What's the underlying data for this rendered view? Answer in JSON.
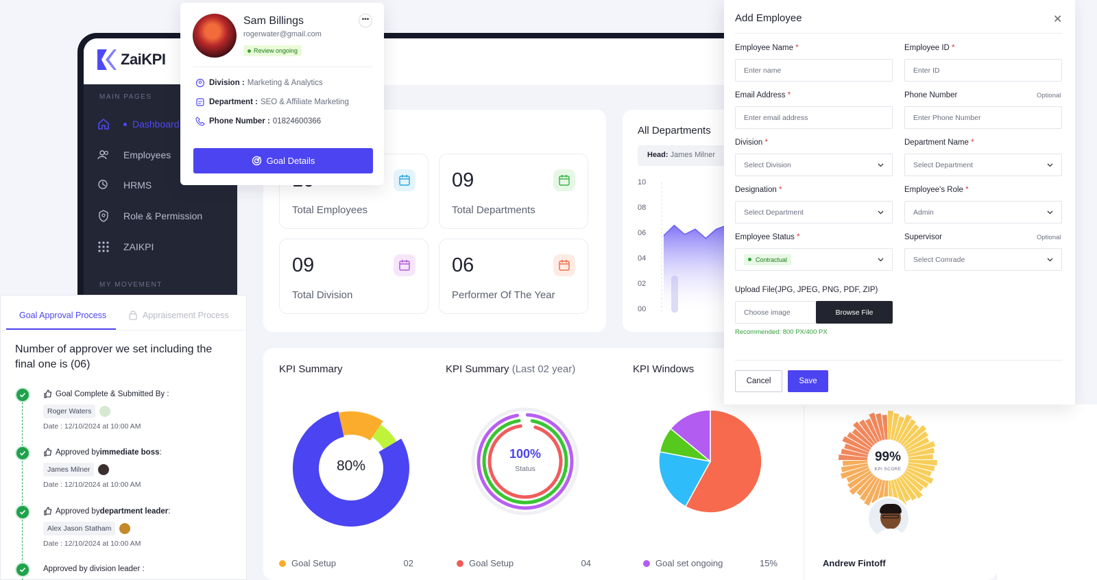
{
  "app": {
    "brand": "ZaiKPI"
  },
  "sidebar": {
    "section_main": "MAIN PAGES",
    "items": [
      {
        "label": "Dashboard",
        "icon": "home-icon",
        "active": true
      },
      {
        "label": "Employees",
        "icon": "users-icon"
      },
      {
        "label": "HRMS",
        "icon": "hrms-icon"
      },
      {
        "label": "Role & Permission",
        "icon": "shield-icon"
      },
      {
        "label": "ZAIKPI",
        "icon": "grid-icon"
      }
    ],
    "section_movement": "MY MOVEMENT"
  },
  "stats": [
    {
      "value": "10",
      "label": "Total Employees",
      "color": "#2ea7e0",
      "bg": "#e3f4fc"
    },
    {
      "value": "09",
      "label": "Total Departments",
      "color": "#3cb54a",
      "bg": "#e6f7e6"
    },
    {
      "value": "09",
      "label": "Total Division",
      "color": "#b45ad8",
      "bg": "#f6e6fc"
    },
    {
      "value": "06",
      "label": "Performer Of The Year",
      "color": "#ee6f4d",
      "bg": "#fdebe4"
    }
  ],
  "departments": {
    "title": "All Departments",
    "head_label": "Head:",
    "head_name": "James Milner",
    "yticks": [
      "10",
      "08",
      "06",
      "04",
      "02",
      "00"
    ]
  },
  "kpi": {
    "summary_title": "KPI Summary",
    "summary2_title": "KPI Summary",
    "summary2_sub": "(Last 02 year)",
    "windows_title": "KPI Windows",
    "donut_value": "80%",
    "ring_value": "100%",
    "ring_sub": "Status",
    "score_value": "99%",
    "score_sub": "KPI SCORE",
    "score_person": "Andrew Fintoff",
    "legend1_label": "Goal Setup",
    "legend1_value": "02",
    "legend2_label": "Goal Setup",
    "legend2_value": "04",
    "legend3_label": "Goal set ongoing",
    "legend3_value": "15%"
  },
  "chart_data": [
    {
      "type": "pie",
      "title": "KPI Summary",
      "values": [
        80,
        13,
        7
      ],
      "colors": [
        "#4b44f2",
        "#fbac2c",
        "#bff23b"
      ],
      "center_label": "80%"
    },
    {
      "type": "pie",
      "title": "KPI Summary (Last 02 year)",
      "values": [
        100,
        100,
        100
      ],
      "colors": [
        "#b85ff2",
        "#38c531",
        "#f05c5c"
      ],
      "center_label": "100%"
    },
    {
      "type": "pie",
      "title": "KPI Windows",
      "values": [
        58,
        20,
        8,
        14
      ],
      "colors": [
        "#f76a4d",
        "#2fbcfa",
        "#56c91f",
        "#b35cf2"
      ]
    },
    {
      "type": "area",
      "title": "All Departments",
      "ylim": [
        0,
        10
      ],
      "values": [
        5.8,
        6.6,
        5.9,
        6.3,
        5.6,
        6.3,
        6.6
      ]
    }
  ],
  "profile": {
    "name": "Sam Billings",
    "email": "rogerwater@gmail.com",
    "status": "Review ongoing",
    "division_label": "Division :",
    "division": "Marketing & Analytics",
    "department_label": "Department :",
    "department": "SEO & Affiliate Marketing",
    "phone_label": "Phone Number :",
    "phone": "01824600366",
    "button": "Goal Details"
  },
  "approval": {
    "tab_active": "Goal Approval Process",
    "tab_other": "Appraisement Process",
    "heading": "Number of approver we set including the final one is (06)",
    "steps": [
      {
        "prefix": "Goal Complete & Submitted By :",
        "strong": "",
        "suffix": "",
        "person": "Roger Waters",
        "date": "Date : 12/10/2024 at 10:00 AM"
      },
      {
        "prefix": "Approved by ",
        "strong": "immediate boss",
        "suffix": " :",
        "person": "James Milner",
        "date": "Date : 12/10/2024 at 10:00 AM"
      },
      {
        "prefix": "Approved by ",
        "strong": "department leader",
        "suffix": " :",
        "person": "Alex Jason Statham",
        "date": "Date : 12/10/2024 at 10:00 AM"
      }
    ],
    "partial": "Approved by division leader :"
  },
  "modal": {
    "title": "Add Employee",
    "fields": {
      "name_label": "Employee Name",
      "name_ph": "Enter name",
      "id_label": "Employee ID",
      "id_ph": "Enter ID",
      "email_label": "Email Address",
      "email_ph": "Enter email address",
      "phone_label": "Phone Number",
      "phone_ph": "Enter Phone Number",
      "division_label": "Division",
      "division_val": "Select Division",
      "dept_label": "Department Name",
      "dept_val": "Select Department",
      "desig_label": "Designation",
      "desig_val": "Select Department",
      "role_label": "Employee's Role",
      "role_val": "Admin",
      "status_label": "Employee Status",
      "status_val": "Contractual",
      "sup_label": "Supervisor",
      "sup_val": "Select Comrade",
      "upload_label": "Upload File(JPG, JPEG, PNG, PDF, ZIP)",
      "upload_ph": "Choose image",
      "browse": "Browse File",
      "recommend": "Recommended: 800 PX/400 PX"
    },
    "optional": "Optional",
    "required_mark": "*",
    "cancel": "Cancel",
    "save": "Save"
  }
}
